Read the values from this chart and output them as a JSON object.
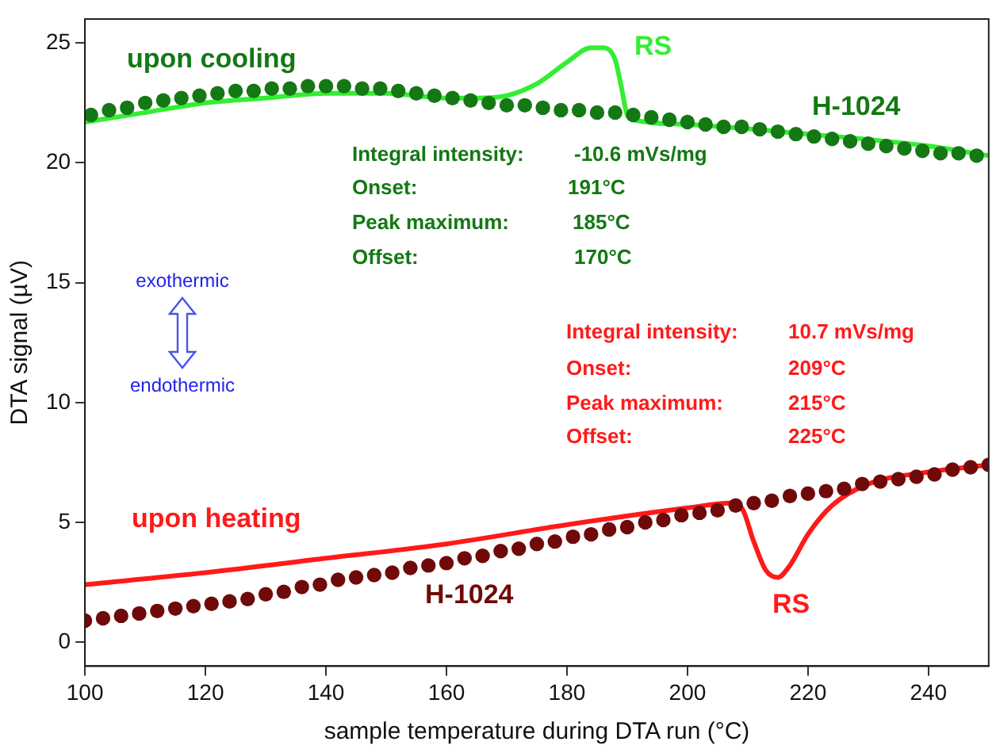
{
  "chart_data": {
    "type": "line",
    "xlabel": "sample temperature during DTA run (°C)",
    "ylabel": "DTA signal (µV)",
    "xlim": [
      100,
      250
    ],
    "ylim": [
      -1,
      26
    ],
    "xticks": [
      100,
      120,
      140,
      160,
      180,
      200,
      220,
      240
    ],
    "yticks": [
      0,
      5,
      10,
      15,
      20,
      25
    ],
    "grid": false,
    "legend": false,
    "series": [
      {
        "type": "scatter",
        "name": "H-1024",
        "marker": "circle",
        "color": "#147814",
        "x": [
          101,
          104,
          107,
          110,
          113,
          116,
          119,
          122,
          125,
          128,
          131,
          134,
          137,
          140,
          143,
          146,
          149,
          152,
          155,
          158,
          161,
          164,
          167,
          170,
          173,
          176,
          179,
          182,
          185,
          188,
          191,
          194,
          197,
          200,
          203,
          206,
          209,
          212,
          215,
          218,
          221,
          224,
          227,
          230,
          233,
          236,
          239,
          242,
          245,
          248
        ],
        "values": [
          22.0,
          22.2,
          22.3,
          22.5,
          22.6,
          22.7,
          22.8,
          22.9,
          23.0,
          23.0,
          23.1,
          23.1,
          23.2,
          23.2,
          23.2,
          23.1,
          23.1,
          23.0,
          22.9,
          22.8,
          22.7,
          22.6,
          22.5,
          22.4,
          22.4,
          22.3,
          22.2,
          22.2,
          22.1,
          22.1,
          22.0,
          21.9,
          21.8,
          21.7,
          21.6,
          21.5,
          21.5,
          21.4,
          21.3,
          21.2,
          21.1,
          21.0,
          20.9,
          20.8,
          20.7,
          20.6,
          20.5,
          20.4,
          20.4,
          20.3
        ]
      },
      {
        "type": "line",
        "name": "RS",
        "marker": "none",
        "color": "#33ee33",
        "x": [
          100,
          110,
          120,
          130,
          140,
          150,
          160,
          165,
          170,
          175,
          180,
          184,
          186,
          188,
          189,
          190,
          191,
          200,
          220,
          240,
          250
        ],
        "values": [
          21.7,
          22.1,
          22.5,
          22.7,
          22.9,
          22.9,
          22.7,
          22.7,
          22.8,
          23.3,
          24.2,
          24.8,
          24.8,
          24.3,
          23.2,
          22.0,
          21.8,
          21.6,
          21.2,
          20.7,
          20.3
        ]
      },
      {
        "type": "scatter",
        "name": "H-1024",
        "marker": "circle",
        "color": "#700a0a",
        "x": [
          100,
          103,
          106,
          109,
          112,
          115,
          118,
          121,
          124,
          127,
          130,
          133,
          136,
          139,
          142,
          145,
          148,
          151,
          154,
          157,
          160,
          163,
          166,
          169,
          172,
          175,
          178,
          181,
          184,
          187,
          190,
          193,
          196,
          199,
          202,
          205,
          208,
          211,
          214,
          217,
          220,
          223,
          226,
          229,
          232,
          235,
          238,
          241,
          244,
          247,
          250
        ],
        "values": [
          0.9,
          1.0,
          1.1,
          1.2,
          1.3,
          1.4,
          1.5,
          1.6,
          1.7,
          1.8,
          2.0,
          2.1,
          2.3,
          2.4,
          2.6,
          2.7,
          2.8,
          2.9,
          3.1,
          3.2,
          3.3,
          3.5,
          3.6,
          3.8,
          3.9,
          4.1,
          4.2,
          4.4,
          4.5,
          4.7,
          4.8,
          5.0,
          5.1,
          5.3,
          5.4,
          5.5,
          5.7,
          5.8,
          5.9,
          6.1,
          6.2,
          6.3,
          6.4,
          6.6,
          6.7,
          6.8,
          6.9,
          7.0,
          7.2,
          7.3,
          7.4
        ]
      },
      {
        "type": "line",
        "name": "RS",
        "marker": "none",
        "color": "#ff1a1a",
        "x": [
          100,
          120,
          140,
          160,
          180,
          200,
          207,
          209,
          211,
          213,
          215,
          217,
          220,
          224,
          230,
          240,
          250
        ],
        "values": [
          2.4,
          2.9,
          3.5,
          4.1,
          4.9,
          5.6,
          5.8,
          5.6,
          4.2,
          3.0,
          2.7,
          3.2,
          4.5,
          5.7,
          6.6,
          7.1,
          7.4
        ]
      }
    ],
    "annotations": [
      "upon cooling",
      "Integral intensity:  -10.6 mVs/mg",
      "Onset:  191°C",
      "Peak maximum:  185°C",
      "Offset:  170°C",
      "Integral intensity:  10.7 mVs/mg",
      "Onset:  209°C",
      "Peak maximum:  215°C",
      "Offset:  225°C",
      "upon heating",
      "exothermic",
      "endothermic"
    ]
  }
}
